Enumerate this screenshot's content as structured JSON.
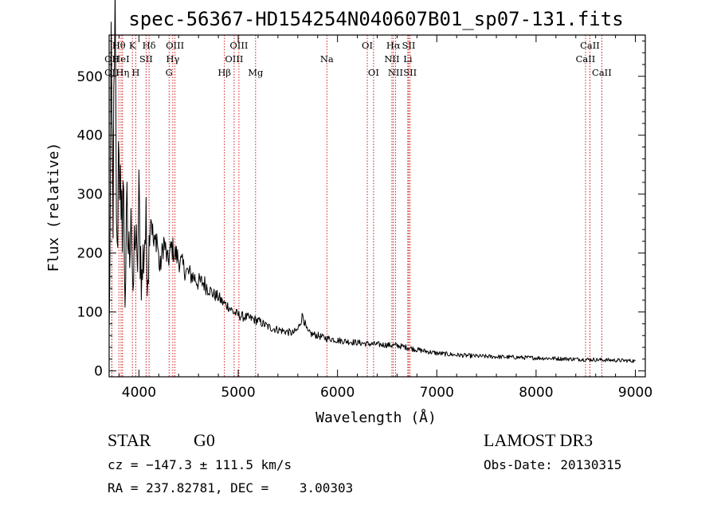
{
  "chart_data": {
    "type": "line",
    "title": "spec-56367-HD154254N040607B01_sp07-131.fits",
    "xlabel": "Wavelength (Å)",
    "ylabel": "Flux (relative)",
    "xlim": [
      3700,
      9100
    ],
    "ylim": [
      -10,
      570
    ],
    "x_ticks": [
      4000,
      5000,
      6000,
      7000,
      8000,
      9000
    ],
    "x_tick_labels": [
      "4000",
      "5000",
      "6000",
      "7000",
      "8000",
      "9000"
    ],
    "y_ticks": [
      0,
      100,
      200,
      300,
      400,
      500
    ],
    "y_tick_labels": [
      "0",
      "100",
      "200",
      "300",
      "400",
      "500"
    ],
    "series": [
      {
        "name": "flux",
        "x": [
          3700,
          3720,
          3740,
          3760,
          3780,
          3800,
          3820,
          3840,
          3860,
          3880,
          3900,
          3920,
          3940,
          3960,
          3980,
          4000,
          4030,
          4060,
          4090,
          4120,
          4150,
          4180,
          4210,
          4250,
          4290,
          4330,
          4360,
          4400,
          4450,
          4500,
          4550,
          4600,
          4650,
          4700,
          4750,
          4800,
          4850,
          4900,
          4950,
          5000,
          5050,
          5100,
          5150,
          5200,
          5250,
          5300,
          5350,
          5400,
          5450,
          5500,
          5550,
          5600,
          5650,
          5680,
          5700,
          5750,
          5800,
          5850,
          5900,
          5950,
          6000,
          6100,
          6200,
          6300,
          6400,
          6500,
          6600,
          6700,
          6800,
          6900,
          7000,
          7200,
          7400,
          7600,
          7800,
          8000,
          8200,
          8400,
          8600,
          8800,
          9000
        ],
        "y": [
          60,
          430,
          300,
          520,
          180,
          460,
          200,
          330,
          130,
          250,
          190,
          320,
          100,
          260,
          160,
          270,
          150,
          240,
          190,
          270,
          210,
          230,
          170,
          220,
          185,
          210,
          200,
          190,
          175,
          165,
          160,
          150,
          150,
          140,
          130,
          125,
          115,
          110,
          100,
          95,
          92,
          90,
          88,
          85,
          80,
          75,
          72,
          70,
          68,
          66,
          64,
          70,
          95,
          75,
          65,
          62,
          60,
          57,
          55,
          54,
          52,
          50,
          48,
          46,
          45,
          44,
          43,
          40,
          36,
          33,
          30,
          27,
          25,
          24,
          23,
          22,
          21,
          20,
          19,
          18,
          17
        ]
      }
    ],
    "line_markers": [
      {
        "label": "OII",
        "wavelength": 3727,
        "row": 3
      },
      {
        "label": "Hθ",
        "wavelength": 3798,
        "row": 1
      },
      {
        "label": "OII",
        "wavelength": 3727,
        "row": 2
      },
      {
        "label": "HeI",
        "wavelength": 3820,
        "row": 2
      },
      {
        "label": "Hη",
        "wavelength": 3835,
        "row": 3
      },
      {
        "label": "K",
        "wavelength": 3934,
        "row": 1
      },
      {
        "label": "SII",
        "wavelength": 4072,
        "row": 2
      },
      {
        "label": "H",
        "wavelength": 3968,
        "row": 3
      },
      {
        "label": "Hδ",
        "wavelength": 4102,
        "row": 1
      },
      {
        "label": "OIII",
        "wavelength": 4363,
        "row": 1
      },
      {
        "label": "Hγ",
        "wavelength": 4341,
        "row": 2
      },
      {
        "label": "G",
        "wavelength": 4304,
        "row": 3
      },
      {
        "label": "Hβ",
        "wavelength": 4861,
        "row": 3
      },
      {
        "label": "OIII",
        "wavelength": 5007,
        "row": 1
      },
      {
        "label": "OIII",
        "wavelength": 4959,
        "row": 2
      },
      {
        "label": "Mg",
        "wavelength": 5175,
        "row": 3
      },
      {
        "label": "Na",
        "wavelength": 5893,
        "row": 2
      },
      {
        "label": "OI",
        "wavelength": 6300,
        "row": 1
      },
      {
        "label": "OI",
        "wavelength": 6363,
        "row": 3
      },
      {
        "label": "Hα",
        "wavelength": 6563,
        "row": 1
      },
      {
        "label": "SII",
        "wavelength": 6717,
        "row": 1
      },
      {
        "label": "NII",
        "wavelength": 6548,
        "row": 2
      },
      {
        "label": "Li",
        "wavelength": 6708,
        "row": 2
      },
      {
        "label": "NII",
        "wavelength": 6584,
        "row": 3
      },
      {
        "label": "SII",
        "wavelength": 6731,
        "row": 3
      },
      {
        "label": "CaII",
        "wavelength": 8542,
        "row": 1
      },
      {
        "label": "CaII",
        "wavelength": 8498,
        "row": 2
      },
      {
        "label": "CaII",
        "wavelength": 8662,
        "row": 3
      }
    ],
    "line_color": "#000000",
    "marker_color": "#cc0000"
  },
  "info": {
    "class": "STAR",
    "subclass": "G0",
    "survey": "LAMOST DR3",
    "redshift": "cz = −147.3 ± 111.5 km/s",
    "obs_date": "Obs-Date: 20130315",
    "coords": "RA = 237.82781, DEC =    3.00303"
  }
}
